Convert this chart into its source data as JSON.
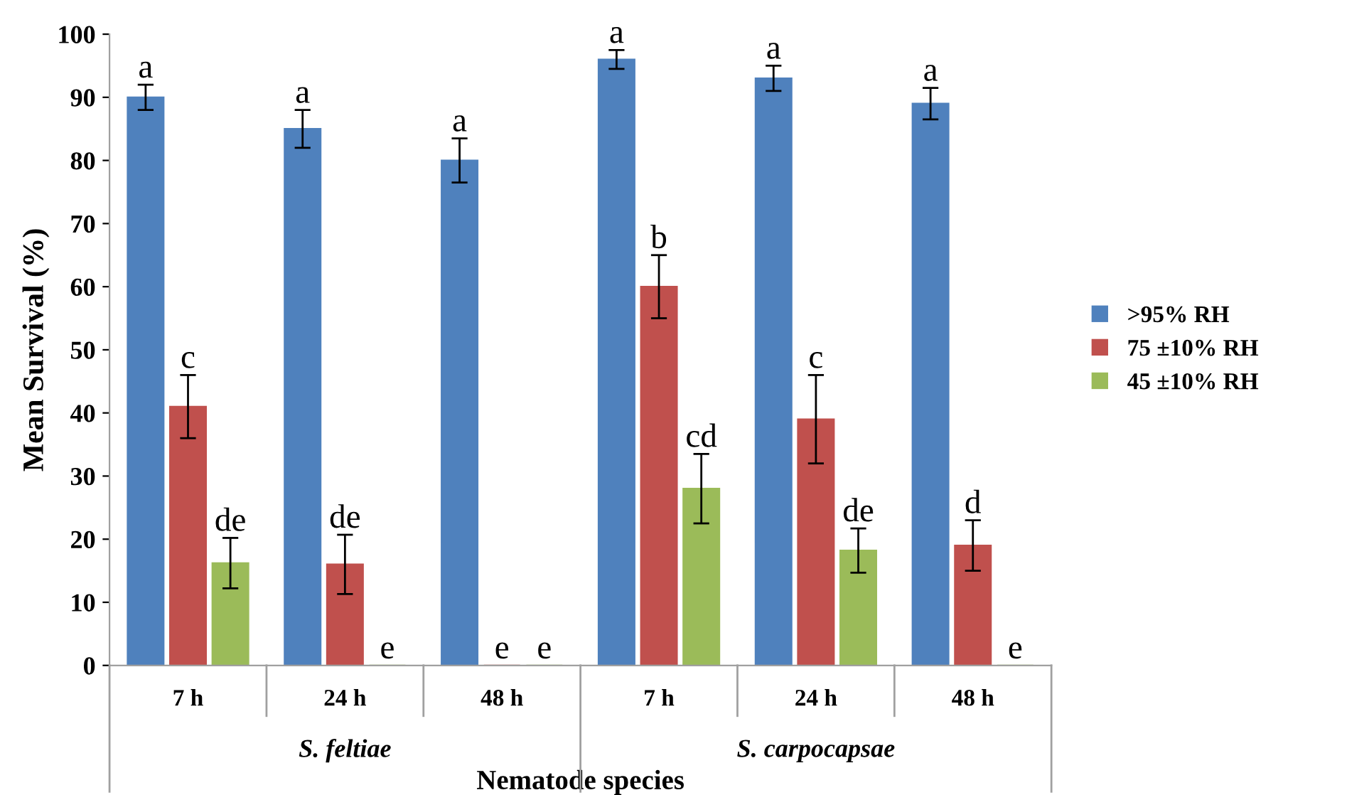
{
  "chart_data": {
    "type": "bar",
    "ylabel": "Mean Survival (%)",
    "xlabel": "Nematode species",
    "categories": [
      "7 h",
      "24 h",
      "48 h",
      "7 h",
      "24 h",
      "48 h"
    ],
    "series": [
      {
        "name": ">95% RH",
        "color": "#4f81bd",
        "values": [
          90,
          85,
          80,
          96,
          93,
          89
        ],
        "errors": [
          2,
          3,
          3.5,
          1.5,
          2,
          2.5
        ],
        "value_labels": [
          "a",
          "a",
          "a",
          "a",
          "a",
          "a"
        ]
      },
      {
        "name": "75 ±10% RH",
        "color": "#c0504d",
        "values": [
          41,
          16,
          0,
          60,
          39,
          19
        ],
        "errors": [
          5,
          4.7,
          null,
          5,
          7,
          4
        ],
        "value_labels": [
          "c",
          "de",
          "e",
          "b",
          "c",
          "d"
        ]
      },
      {
        "name": "45 ±10% RH",
        "color": "#9bbb59",
        "values": [
          16.2,
          0,
          0,
          28,
          18.2,
          0
        ],
        "errors": [
          4,
          null,
          null,
          5.5,
          3.5,
          null
        ],
        "value_labels": [
          "de",
          "e",
          "e",
          "cd",
          "de",
          "e"
        ]
      }
    ],
    "annotations": [
      "S. feltiae",
      "S. carpocapsae"
    ],
    "ylim": [
      0,
      100
    ],
    "yticks": [
      0,
      10,
      20,
      30,
      40,
      50,
      60,
      70,
      80,
      90,
      100
    ],
    "grid": false,
    "legend": "right"
  }
}
